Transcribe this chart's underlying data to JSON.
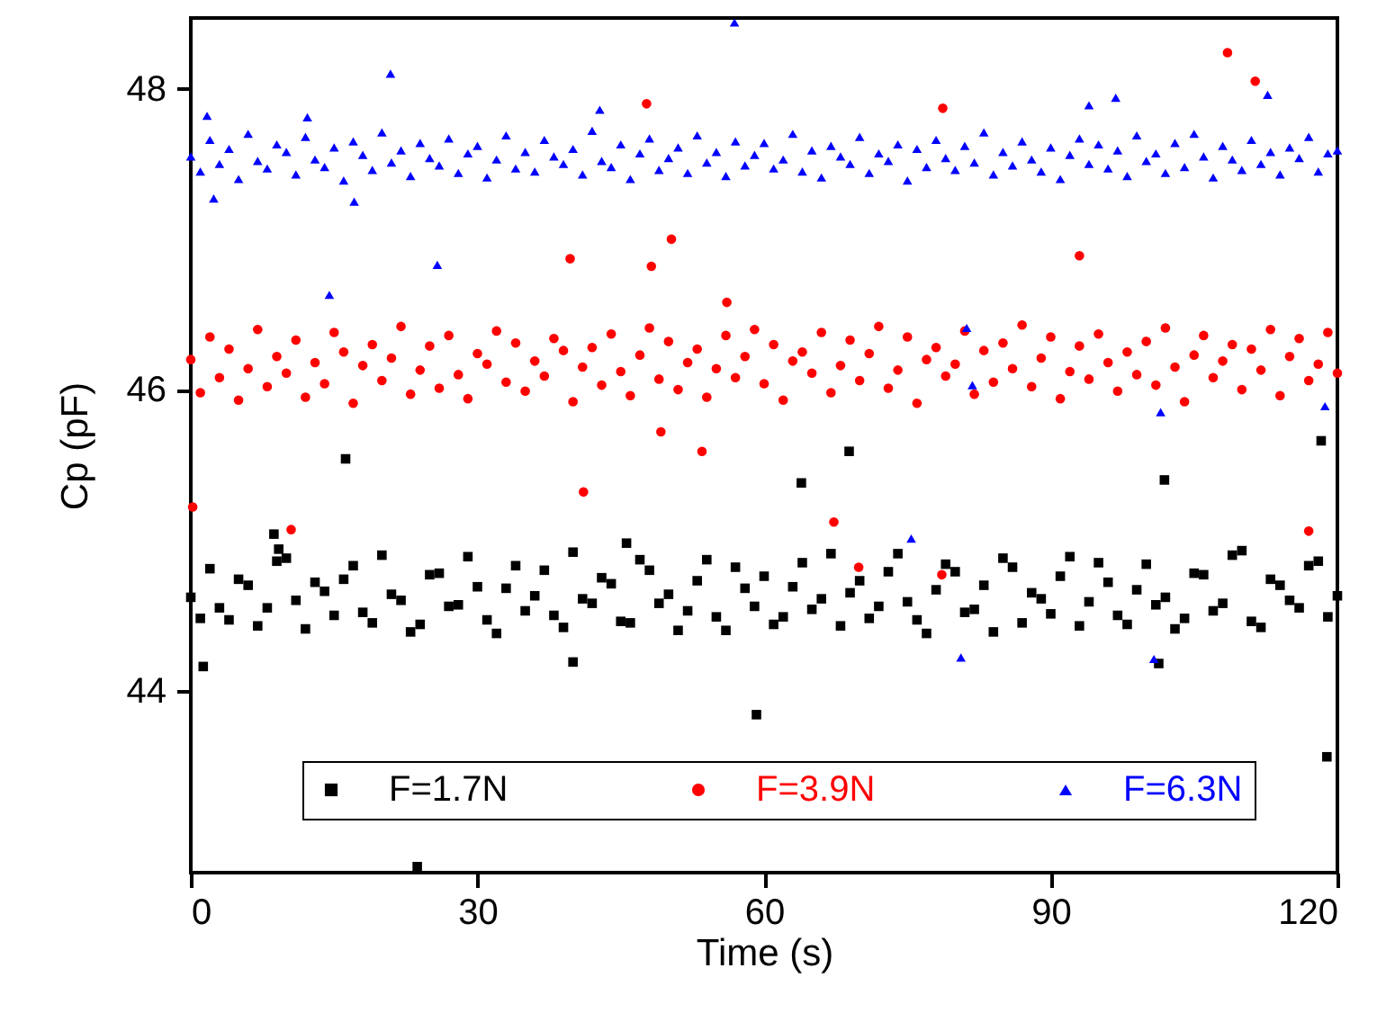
{
  "chart_data": {
    "type": "scatter",
    "xlabel": "Time (s)",
    "ylabel": "Cp (pF)",
    "xlim": [
      0,
      120
    ],
    "ylim": [
      42.79,
      48.47
    ],
    "xticks": [
      0,
      30,
      60,
      90,
      120
    ],
    "yticks": [
      44,
      46,
      48
    ],
    "grid": false,
    "legend": "bottom",
    "series": [
      {
        "name": "F=1.7N",
        "color": "#000000",
        "marker": "square",
        "x": [
          0,
          1,
          2,
          3,
          4,
          5,
          6,
          7,
          8,
          9,
          10,
          11,
          12,
          13,
          14,
          15,
          16,
          17,
          18,
          19,
          20,
          21,
          22,
          23,
          24,
          25,
          26,
          27,
          28,
          29,
          30,
          31,
          32,
          33,
          34,
          35,
          36,
          37,
          38,
          39,
          40,
          41,
          42,
          43,
          44,
          45,
          46,
          47,
          48,
          49,
          50,
          51,
          52,
          53,
          54,
          55,
          56,
          57,
          58,
          59,
          60,
          61,
          62,
          63,
          64,
          65,
          66,
          67,
          68,
          69,
          70,
          71,
          72,
          73,
          74,
          75,
          76,
          77,
          78,
          79,
          80,
          81,
          82,
          83,
          84,
          85,
          86,
          87,
          88,
          89,
          90,
          91,
          92,
          93,
          94,
          95,
          96,
          97,
          98,
          99,
          100,
          101,
          102,
          103,
          104,
          105,
          106,
          107,
          108,
          109,
          110,
          111,
          112,
          113,
          114,
          115,
          116,
          117,
          118,
          119,
          120,
          16.2,
          8.7,
          9.2,
          1.3,
          45.6,
          23.7,
          40,
          59.2,
          68.9,
          63.9,
          101.9,
          118.3,
          118.9,
          101.3
        ],
        "values": [
          44.62,
          44.48,
          44.81,
          44.55,
          44.47,
          44.74,
          44.7,
          44.43,
          44.55,
          44.86,
          44.88,
          44.6,
          44.41,
          44.72,
          44.66,
          44.5,
          44.74,
          44.83,
          44.52,
          44.45,
          44.9,
          44.64,
          44.6,
          44.39,
          44.44,
          44.77,
          44.78,
          44.56,
          44.57,
          44.89,
          44.69,
          44.47,
          44.38,
          44.68,
          44.83,
          44.53,
          44.63,
          44.8,
          44.5,
          44.42,
          44.92,
          44.61,
          44.58,
          44.75,
          44.71,
          44.46,
          44.45,
          44.87,
          44.8,
          44.58,
          44.64,
          44.4,
          44.53,
          44.73,
          44.87,
          44.49,
          44.4,
          44.82,
          44.68,
          44.56,
          44.76,
          44.44,
          44.49,
          44.69,
          44.85,
          44.54,
          44.61,
          44.91,
          44.43,
          44.65,
          44.73,
          44.48,
          44.56,
          44.79,
          44.91,
          44.59,
          44.47,
          44.38,
          44.67,
          44.84,
          44.79,
          44.52,
          44.54,
          44.7,
          44.39,
          44.88,
          44.82,
          44.45,
          44.65,
          44.61,
          44.51,
          44.76,
          44.89,
          44.43,
          44.59,
          44.85,
          44.72,
          44.5,
          44.44,
          44.67,
          44.84,
          44.57,
          44.62,
          44.41,
          44.48,
          44.78,
          44.77,
          44.53,
          44.58,
          44.9,
          44.93,
          44.46,
          44.42,
          44.74,
          44.7,
          44.6,
          44.55,
          44.83,
          44.86,
          44.49,
          44.63,
          45.54,
          45.04,
          44.94,
          44.16,
          44.98,
          42.83,
          44.19,
          43.84,
          45.59,
          45.38,
          45.4,
          45.66,
          43.56,
          44.18
        ]
      },
      {
        "name": "F=3.9N",
        "color": "#ff0000",
        "marker": "circle",
        "x": [
          0,
          1,
          2,
          3,
          4,
          5,
          6,
          7,
          8,
          9,
          10,
          11,
          12,
          13,
          14,
          15,
          16,
          17,
          18,
          19,
          20,
          21,
          22,
          23,
          24,
          25,
          26,
          27,
          28,
          29,
          30,
          31,
          32,
          33,
          34,
          35,
          36,
          37,
          38,
          39,
          40,
          41,
          42,
          43,
          44,
          45,
          46,
          47,
          48,
          49,
          50,
          51,
          52,
          53,
          54,
          55,
          56,
          57,
          58,
          59,
          60,
          61,
          62,
          63,
          64,
          65,
          66,
          67,
          68,
          69,
          70,
          71,
          72,
          73,
          74,
          75,
          76,
          77,
          78,
          79,
          80,
          81,
          82,
          83,
          84,
          85,
          86,
          87,
          88,
          89,
          90,
          91,
          92,
          93,
          94,
          95,
          96,
          97,
          98,
          99,
          100,
          101,
          102,
          103,
          104,
          105,
          106,
          107,
          108,
          109,
          110,
          111,
          112,
          113,
          114,
          115,
          116,
          117,
          118,
          119,
          120,
          47.7,
          50.3,
          48.2,
          39.7,
          56.1,
          49.2,
          108.5,
          111.4,
          78.7,
          93,
          10.5,
          41.1,
          53.5,
          0.2,
          67.3,
          117,
          69.9,
          78.6
        ],
        "values": [
          46.2,
          45.98,
          46.35,
          46.08,
          46.27,
          45.93,
          46.14,
          46.4,
          46.02,
          46.22,
          46.11,
          46.33,
          45.95,
          46.18,
          46.04,
          46.38,
          46.25,
          45.91,
          46.16,
          46.3,
          46.06,
          46.21,
          46.42,
          45.97,
          46.13,
          46.29,
          46.01,
          46.36,
          46.1,
          45.94,
          46.24,
          46.17,
          46.39,
          46.05,
          46.31,
          45.99,
          46.19,
          46.09,
          46.34,
          46.26,
          45.92,
          46.15,
          46.28,
          46.03,
          46.37,
          46.12,
          45.96,
          46.23,
          46.41,
          46.07,
          46.32,
          46.0,
          46.18,
          46.27,
          45.95,
          46.14,
          46.36,
          46.08,
          46.22,
          46.4,
          46.04,
          46.3,
          45.93,
          46.19,
          46.25,
          46.11,
          46.38,
          45.98,
          46.16,
          46.33,
          46.06,
          46.24,
          46.42,
          46.01,
          46.13,
          46.35,
          45.91,
          46.2,
          46.28,
          46.09,
          46.17,
          46.39,
          45.97,
          46.26,
          46.05,
          46.31,
          46.14,
          46.43,
          46.02,
          46.21,
          46.35,
          45.94,
          46.12,
          46.29,
          46.07,
          46.37,
          46.18,
          45.99,
          46.25,
          46.1,
          46.32,
          46.03,
          46.41,
          46.15,
          45.92,
          46.23,
          46.36,
          46.08,
          46.19,
          46.3,
          46.0,
          46.27,
          46.13,
          46.4,
          45.96,
          46.22,
          46.34,
          46.06,
          46.17,
          46.38,
          46.11,
          47.9,
          47.0,
          46.82,
          46.87,
          46.58,
          45.72,
          48.24,
          48.05,
          47.87,
          46.89,
          45.07,
          45.32,
          45.59,
          45.22,
          45.12,
          45.06,
          44.82,
          44.77
        ]
      },
      {
        "name": "F=6.3N",
        "color": "#0000ff",
        "marker": "triangle",
        "x": [
          0,
          1,
          2,
          3,
          4,
          5,
          6,
          7,
          8,
          9,
          10,
          11,
          12,
          13,
          14,
          15,
          16,
          17,
          18,
          19,
          20,
          21,
          22,
          23,
          24,
          25,
          26,
          27,
          28,
          29,
          30,
          31,
          32,
          33,
          34,
          35,
          36,
          37,
          38,
          39,
          40,
          41,
          42,
          43,
          44,
          45,
          46,
          47,
          48,
          49,
          50,
          51,
          52,
          53,
          54,
          55,
          56,
          57,
          58,
          59,
          60,
          61,
          62,
          63,
          64,
          65,
          66,
          67,
          68,
          69,
          70,
          71,
          72,
          73,
          74,
          75,
          76,
          77,
          78,
          79,
          80,
          81,
          82,
          83,
          84,
          85,
          86,
          87,
          88,
          89,
          90,
          91,
          92,
          93,
          94,
          95,
          96,
          97,
          98,
          99,
          100,
          101,
          102,
          103,
          104,
          105,
          106,
          107,
          108,
          109,
          110,
          111,
          112,
          113,
          114,
          115,
          116,
          117,
          118,
          119,
          120,
          20.9,
          56.9,
          25.8,
          14.5,
          96.8,
          112.7,
          94,
          81.2,
          81.8,
          101.5,
          118.7,
          75.4,
          80.6,
          100.8,
          42.8,
          1.7,
          12.2,
          17.1,
          2.4
        ],
        "values": [
          47.55,
          47.45,
          47.66,
          47.5,
          47.6,
          47.4,
          47.7,
          47.52,
          47.47,
          47.63,
          47.58,
          47.43,
          47.68,
          47.53,
          47.48,
          47.61,
          47.39,
          47.65,
          47.56,
          47.46,
          47.71,
          47.51,
          47.59,
          47.42,
          47.64,
          47.54,
          47.49,
          47.67,
          47.44,
          47.57,
          47.62,
          47.41,
          47.53,
          47.69,
          47.47,
          47.58,
          47.45,
          47.66,
          47.55,
          47.5,
          47.6,
          47.43,
          47.72,
          47.52,
          47.48,
          47.63,
          47.4,
          47.57,
          47.67,
          47.46,
          47.54,
          47.61,
          47.44,
          47.69,
          47.51,
          47.58,
          47.42,
          47.65,
          47.49,
          47.56,
          47.64,
          47.47,
          47.53,
          47.7,
          47.45,
          47.59,
          47.41,
          47.62,
          47.55,
          47.5,
          47.68,
          47.44,
          47.57,
          47.52,
          47.63,
          47.39,
          47.6,
          47.48,
          47.66,
          47.54,
          47.46,
          47.62,
          47.51,
          47.71,
          47.43,
          47.58,
          47.49,
          47.65,
          47.53,
          47.45,
          47.61,
          47.4,
          47.56,
          47.67,
          47.5,
          47.63,
          47.47,
          47.59,
          47.42,
          47.69,
          47.52,
          47.57,
          47.44,
          47.64,
          47.48,
          47.7,
          47.55,
          47.41,
          47.62,
          47.53,
          47.46,
          47.66,
          47.5,
          47.58,
          47.43,
          47.61,
          47.54,
          47.68,
          47.45,
          47.57,
          47.59,
          48.1,
          48.44,
          46.83,
          46.63,
          47.94,
          47.96,
          47.89,
          46.41,
          46.03,
          45.85,
          45.89,
          45.01,
          44.22,
          44.21,
          47.86,
          47.82,
          47.81,
          47.25,
          47.27
        ]
      }
    ]
  }
}
